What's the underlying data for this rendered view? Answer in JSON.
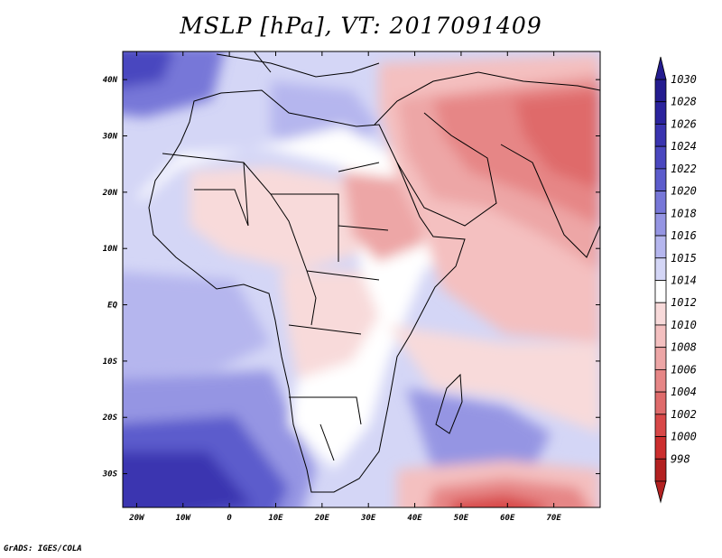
{
  "title": "MSLP [hPa], VT: 2017091409",
  "credit": "GrADS: IGES/COLA",
  "map": {
    "lon_range": [
      -23,
      80
    ],
    "lat_range": [
      -36,
      45
    ],
    "lon_ticks": [
      {
        "value": -20,
        "label": "20W"
      },
      {
        "value": -10,
        "label": "10W"
      },
      {
        "value": 0,
        "label": "0"
      },
      {
        "value": 10,
        "label": "10E"
      },
      {
        "value": 20,
        "label": "20E"
      },
      {
        "value": 30,
        "label": "30E"
      },
      {
        "value": 40,
        "label": "40E"
      },
      {
        "value": 50,
        "label": "50E"
      },
      {
        "value": 60,
        "label": "60E"
      },
      {
        "value": 70,
        "label": "70E"
      }
    ],
    "lat_ticks": [
      {
        "value": 40,
        "label": "40N"
      },
      {
        "value": 30,
        "label": "30N"
      },
      {
        "value": 20,
        "label": "20N"
      },
      {
        "value": 10,
        "label": "10N"
      },
      {
        "value": 0,
        "label": "EQ"
      },
      {
        "value": -10,
        "label": "10S"
      },
      {
        "value": -20,
        "label": "20S"
      },
      {
        "value": -30,
        "label": "30S"
      }
    ]
  },
  "colorbar": {
    "colors": [
      "#241c8f",
      "#2b239d",
      "#3a34b0",
      "#4a47bf",
      "#5c5ccc",
      "#7777d8",
      "#9595e3",
      "#b5b6ee",
      "#d4d6f6",
      "#ffffff",
      "#f8dada",
      "#f4c0c0",
      "#eda6a6",
      "#e68686",
      "#df6b6b",
      "#d84848",
      "#cc2e2e",
      "#b32121"
    ],
    "labels": [
      "1030",
      "1028",
      "1026",
      "1024",
      "1022",
      "1020",
      "1018",
      "1016",
      "1015",
      "1014",
      "1012",
      "1010",
      "1008",
      "1006",
      "1004",
      "1002",
      "1000",
      "998"
    ]
  }
}
